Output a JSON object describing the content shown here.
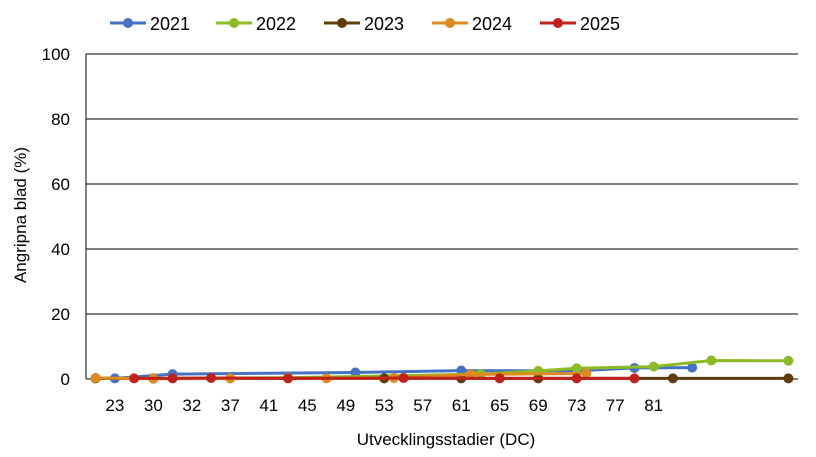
{
  "chart_data": {
    "type": "line",
    "xlabel": "Utvecklingsstadier (DC)",
    "ylabel": "Angripna blad (%)",
    "ylim": [
      0,
      100
    ],
    "yticks": [
      0,
      20,
      40,
      60,
      80,
      100
    ],
    "x_tick_labels": [
      "23",
      "30",
      "32",
      "37",
      "41",
      "45",
      "49",
      "53",
      "57",
      "61",
      "65",
      "69",
      "73",
      "77",
      "81"
    ],
    "grid": true,
    "legend_position": "top",
    "series": [
      {
        "name": "2021",
        "color": "#4472C4",
        "points": [
          [
            0,
            0.3
          ],
          [
            1,
            0.2
          ],
          [
            4,
            1.5
          ],
          [
            13.5,
            2.0
          ],
          [
            19,
            2.6
          ],
          [
            25,
            2.5
          ],
          [
            28,
            3.4
          ],
          [
            31,
            3.5
          ]
        ]
      },
      {
        "name": "2022",
        "color": "#8DBB25",
        "points": [
          [
            0,
            0.2
          ],
          [
            3,
            0.2
          ],
          [
            10,
            0.4
          ],
          [
            20,
            1.5
          ],
          [
            23,
            2.5
          ],
          [
            25,
            3.3
          ],
          [
            29,
            3.8
          ],
          [
            32,
            5.7
          ],
          [
            36,
            5.6
          ]
        ]
      },
      {
        "name": "2023",
        "color": "#5E3C0B",
        "points": [
          [
            0,
            0.2
          ],
          [
            3,
            0.2
          ],
          [
            15,
            0.2
          ],
          [
            19,
            0.2
          ],
          [
            23,
            0.2
          ],
          [
            30,
            0.2
          ],
          [
            36,
            0.2
          ]
        ]
      },
      {
        "name": "2024",
        "color": "#DE8A1F",
        "points": [
          [
            0,
            0.3
          ],
          [
            3,
            0.1
          ],
          [
            7,
            0.2
          ],
          [
            12,
            0.2
          ],
          [
            15.5,
            0.3
          ],
          [
            19.5,
            1.4
          ],
          [
            25.5,
            1.7
          ]
        ]
      },
      {
        "name": "2025",
        "color": "#C0211B",
        "points": [
          [
            2,
            0.2
          ],
          [
            4,
            0.2
          ],
          [
            6,
            0.3
          ],
          [
            10,
            0.2
          ],
          [
            16,
            0.3
          ],
          [
            21,
            0.2
          ],
          [
            25,
            0.2
          ],
          [
            28,
            0.2
          ]
        ]
      }
    ]
  }
}
